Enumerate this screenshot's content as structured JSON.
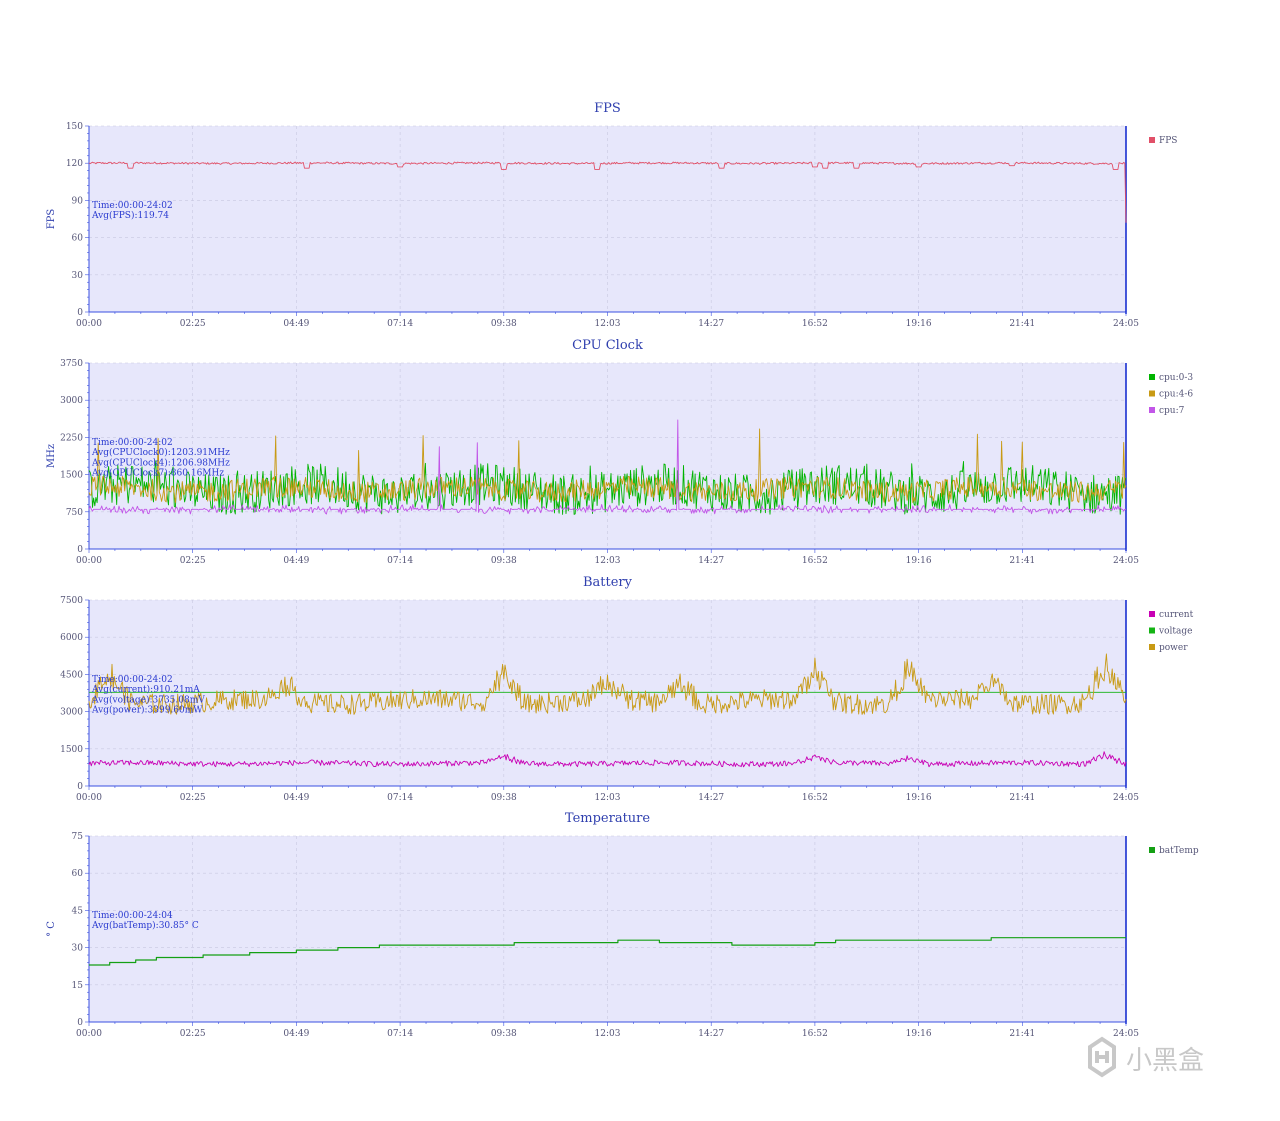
{
  "x_ticks": [
    "00:00",
    "02:25",
    "04:49",
    "07:14",
    "09:38",
    "12:03",
    "14:27",
    "16:52",
    "19:16",
    "21:41",
    "24:05"
  ],
  "watermark": {
    "text": "小黑盒"
  },
  "colors": {
    "title": "#2f3fae",
    "axis": "#3a4fe0",
    "plot_bg": "#e7e7fb",
    "fps": "#e15068",
    "cpu0": "#00b400",
    "cpu4": "#c89a14",
    "cpu7": "#c256e8",
    "current": "#c800b4",
    "voltage": "#14b414",
    "power": "#c89a14",
    "battemp": "#14a014"
  },
  "chart_data": [
    {
      "type": "line",
      "title": "FPS",
      "ylabel": "FPS",
      "ylim": [
        0,
        150
      ],
      "yticks": [
        0,
        30,
        60,
        90,
        120,
        150
      ],
      "xlim": [
        "00:00",
        "24:05"
      ],
      "grid": true,
      "legend_position": "right",
      "annotation": [
        "Time:00:00-24:02",
        "Avg(FPS):119.74"
      ],
      "series": [
        {
          "name": "FPS",
          "color_key": "fps",
          "baseline": 120,
          "noise": 0.8,
          "dips": [
            [
              0.04,
              116
            ],
            [
              0.21,
              116
            ],
            [
              0.3,
              117
            ],
            [
              0.4,
              115
            ],
            [
              0.49,
              115
            ],
            [
              0.61,
              116
            ],
            [
              0.7,
              117
            ],
            [
              0.71,
              116
            ],
            [
              0.74,
              116
            ],
            [
              0.8,
              117
            ],
            [
              0.89,
              118
            ],
            [
              0.99,
              115
            ]
          ],
          "end_value": 72
        }
      ]
    },
    {
      "type": "line",
      "title": "CPU Clock",
      "ylabel": "MHz",
      "ylim": [
        0,
        3750
      ],
      "yticks": [
        0,
        750,
        1500,
        2250,
        3000,
        3750
      ],
      "xlim": [
        "00:00",
        "24:05"
      ],
      "grid": true,
      "legend_position": "right",
      "annotation": [
        "Time:00:00-24:02",
        "Avg(CPUClock0):1203.91MHz",
        "Avg(CPUClock4):1206.98MHz",
        "Avg(CPUClock7):860.16MHz"
      ],
      "series": [
        {
          "name": "cpu:0-3",
          "color_key": "cpu0",
          "baseline": 1200,
          "noise": 420,
          "spike_max": 1800
        },
        {
          "name": "cpu:4-6",
          "color_key": "cpu4",
          "baseline": 1200,
          "noise": 220,
          "spike_max": 2500
        },
        {
          "name": "cpu:7",
          "color_key": "cpu7",
          "baseline": 800,
          "noise": 80,
          "spike_max": 2850
        }
      ]
    },
    {
      "type": "line",
      "title": "Battery",
      "ylabel": "",
      "ylim": [
        0,
        7500
      ],
      "yticks": [
        0,
        1500,
        3000,
        4500,
        6000,
        7500
      ],
      "xlim": [
        "00:00",
        "24:05"
      ],
      "grid": true,
      "legend_position": "right",
      "annotation": [
        "Time:00:00-24:02",
        "Avg(current):910.21mA",
        "Avg(voltage):3735.08mV",
        "Avg(power):3399.60mW"
      ],
      "series": [
        {
          "name": "current",
          "color_key": "current",
          "baseline": 910,
          "noise": 110,
          "peaks": [
            [
              0.4,
              1350
            ],
            [
              0.7,
              1300
            ],
            [
              0.79,
              1280
            ],
            [
              0.98,
              1450
            ]
          ]
        },
        {
          "name": "voltage",
          "color_key": "voltage",
          "baseline": 3780,
          "noise": 0
        },
        {
          "name": "power",
          "color_key": "power",
          "baseline": 3400,
          "noise": 420,
          "peaks": [
            [
              0.02,
              5200
            ],
            [
              0.19,
              4700
            ],
            [
              0.4,
              5400
            ],
            [
              0.5,
              4700
            ],
            [
              0.57,
              4900
            ],
            [
              0.7,
              5400
            ],
            [
              0.79,
              5400
            ],
            [
              0.87,
              4800
            ],
            [
              0.98,
              5500
            ]
          ]
        }
      ]
    },
    {
      "type": "line",
      "title": "Temperature",
      "ylabel": "° C",
      "ylim": [
        0,
        75
      ],
      "yticks": [
        0,
        15,
        30,
        45,
        60,
        75
      ],
      "xlim": [
        "00:00",
        "24:04"
      ],
      "grid": true,
      "legend_position": "right",
      "annotation": [
        "Time:00:00-24:04",
        "Avg(batTemp):30.85° C"
      ],
      "series": [
        {
          "name": "batTemp",
          "color_key": "battemp",
          "steps": [
            [
              0.0,
              23
            ],
            [
              0.02,
              24
            ],
            [
              0.045,
              25
            ],
            [
              0.065,
              26
            ],
            [
              0.11,
              27
            ],
            [
              0.155,
              28
            ],
            [
              0.2,
              29
            ],
            [
              0.24,
              30
            ],
            [
              0.28,
              31
            ],
            [
              0.41,
              32
            ],
            [
              0.51,
              33
            ],
            [
              0.55,
              32
            ],
            [
              0.62,
              31
            ],
            [
              0.7,
              32
            ],
            [
              0.72,
              33
            ],
            [
              0.87,
              34
            ],
            [
              1.0,
              34
            ]
          ]
        }
      ]
    }
  ]
}
